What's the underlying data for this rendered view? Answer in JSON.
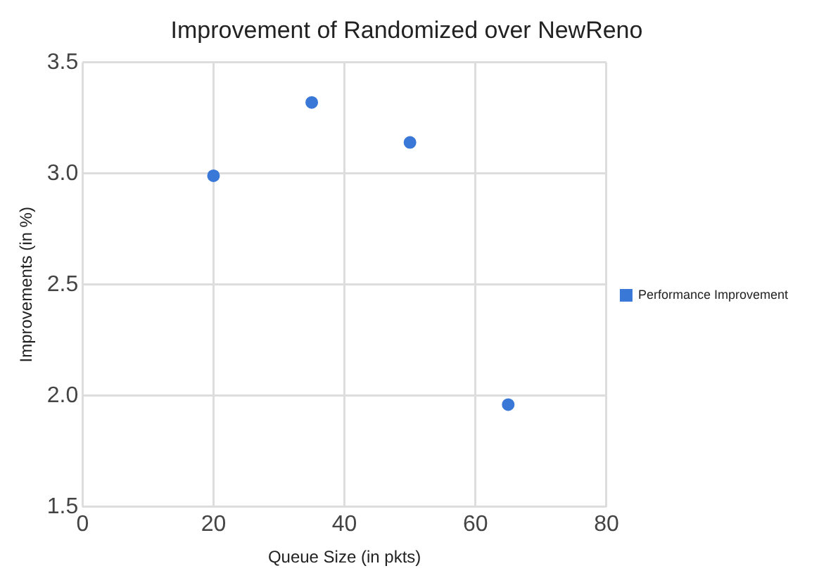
{
  "chart_data": {
    "type": "scatter",
    "title": "Improvement of Randomized over NewReno",
    "xlabel": "Queue Size (in pkts)",
    "ylabel": "Improvements (in %)",
    "series": [
      {
        "name": "Performance Improvement",
        "color": "#3a78d8",
        "x": [
          20,
          35,
          50,
          65
        ],
        "values": [
          2.99,
          3.32,
          3.14,
          1.96
        ]
      }
    ],
    "xlim": [
      0,
      80
    ],
    "xticks": [
      0,
      20,
      40,
      60,
      80
    ],
    "ylim": [
      1.5,
      3.5
    ],
    "yticks": [
      {
        "value": 1.5,
        "label": "1.5"
      },
      {
        "value": 2,
        "label": "2.0"
      },
      {
        "value": 2.5,
        "label": "2.5"
      },
      {
        "value": 3,
        "label": "3.0"
      },
      {
        "value": 3.5,
        "label": "3.5"
      }
    ],
    "grid": true,
    "legend": "right",
    "marker": "circle"
  }
}
